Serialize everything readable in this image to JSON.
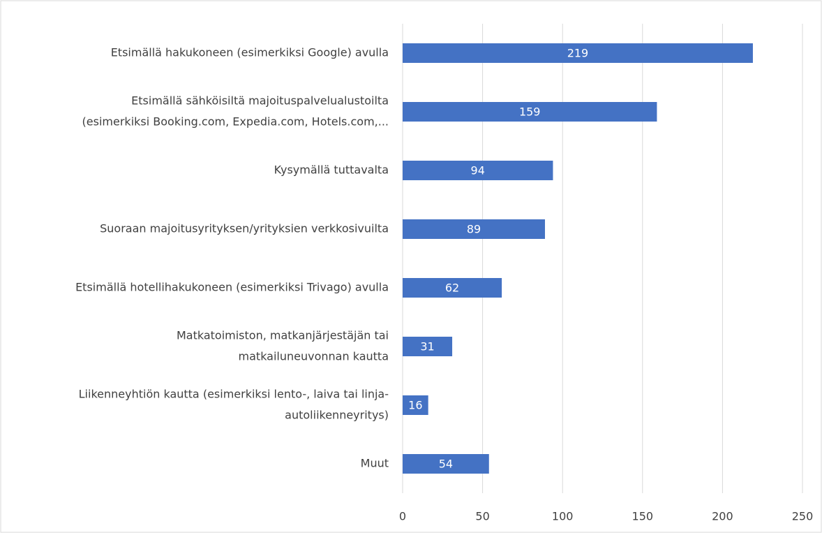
{
  "chart_data": {
    "type": "bar",
    "orientation": "horizontal",
    "categories": [
      [
        "Etsimällä hakukoneen (esimerkiksi Google) avulla"
      ],
      [
        "Etsimällä sähköisiltä majoituspalvelualustoilta",
        "(esimerkiksi Booking.com, Expedia.com, Hotels.com,..."
      ],
      [
        "Kysymällä tuttavalta"
      ],
      [
        "Suoraan majoitusyrityksen/yrityksien verkkosivuilta"
      ],
      [
        "Etsimällä hotellihakukoneen (esimerkiksi Trivago) avulla"
      ],
      [
        "Matkatoimiston, matkanjärjestäjän tai",
        "matkailuneuvonnan kautta"
      ],
      [
        "Liikenneyhtiön kautta (esimerkiksi lento-, laiva tai linja-",
        "autoliikenneyritys)"
      ],
      [
        "Muut"
      ]
    ],
    "values": [
      219,
      159,
      94,
      89,
      62,
      31,
      16,
      54
    ],
    "color": "#4472c4",
    "xlim": [
      0,
      250
    ],
    "xticks": [
      0,
      50,
      100,
      150,
      200,
      250
    ],
    "grid": true
  }
}
